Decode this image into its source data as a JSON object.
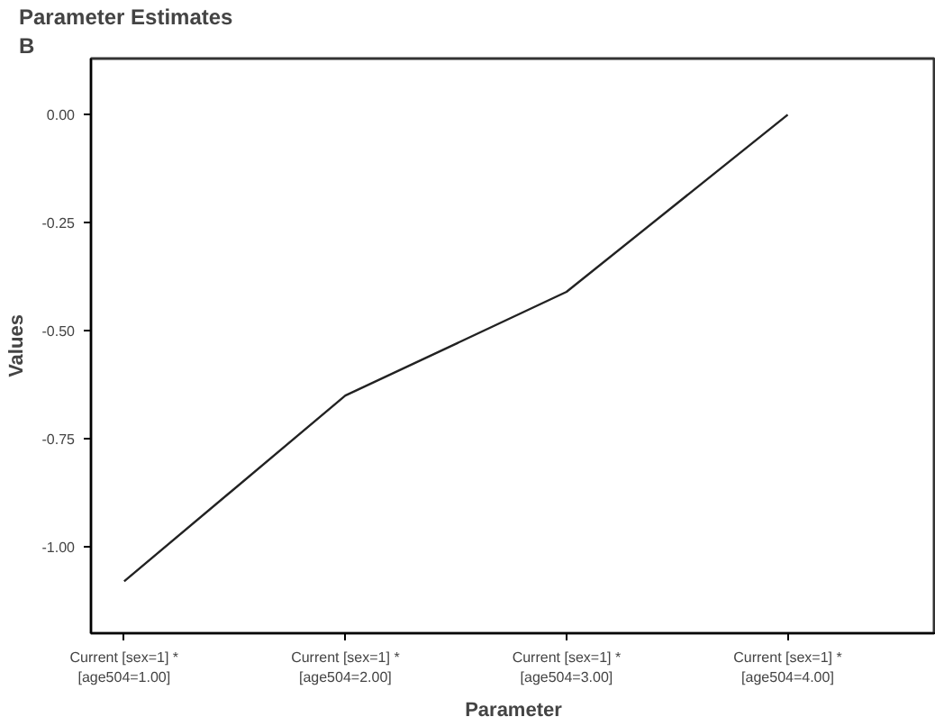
{
  "chart_data": {
    "type": "line",
    "title": "Parameter Estimates",
    "subtitle": "B",
    "xlabel": "Parameter",
    "ylabel": "Values",
    "categories": [
      "Current [sex=1] *\n[age504=1.00]",
      "Current [sex=1] *\n[age504=2.00]",
      "Current [sex=1] *\n[age504=3.00]",
      "Current [sex=1] *\n[age504=4.00]"
    ],
    "series": [
      {
        "color": "#222222",
        "values": [
          -1.08,
          -0.65,
          -0.41,
          0.0
        ]
      }
    ],
    "ylim": [
      -1.2,
      0.13
    ],
    "yticks": [
      {
        "value": 0,
        "label": "0.00"
      },
      {
        "value": -0.25,
        "label": "-0.25"
      },
      {
        "value": -0.5,
        "label": "-0.50"
      },
      {
        "value": -0.75,
        "label": "-0.75"
      },
      {
        "value": -1.0,
        "label": "-1.00"
      }
    ],
    "grid": false,
    "marker": "none",
    "line_style": "solid"
  }
}
